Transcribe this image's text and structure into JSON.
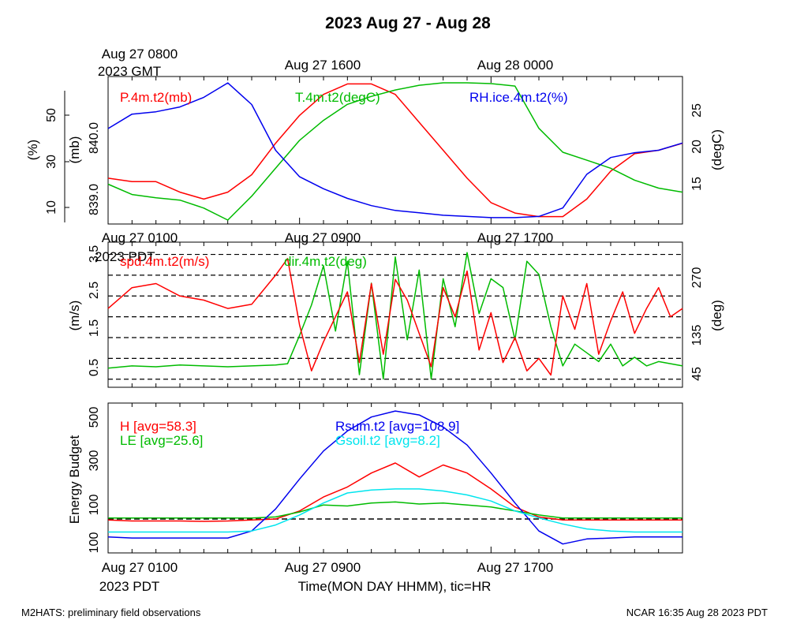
{
  "title": "2023 Aug 27 - Aug 28",
  "top_time_labels": {
    "gmt_first": "Aug 27 0800",
    "gmt_year": "2023 GMT",
    "gmt_mid": "Aug 27 1600",
    "gmt_last": "Aug 28 0000",
    "pdt_first": "Aug 27 0100",
    "pdt_year": "2023 PDT",
    "pdt_mid": "Aug 27 0900",
    "pdt_last": "Aug 27 1700"
  },
  "bottom_axis": {
    "first": "Aug 27 0100",
    "year": "2023 PDT",
    "mid": "Aug 27 0900",
    "last": "Aug 27 1700",
    "xlabel": "Time(MON DAY HHMM), tic=HR"
  },
  "footer": {
    "left": "M2HATS: preliminary field observations",
    "right": "NCAR 16:35 Aug 28 2023 PDT"
  },
  "colors": {
    "red": "#ff0000",
    "green": "#00bb00",
    "blue": "#0000ee",
    "cyan": "#00e5ee",
    "black": "#000000"
  },
  "chart_data": [
    {
      "type": "line",
      "panel": "top",
      "x_hours_pdt": [
        0,
        24
      ],
      "axes": {
        "left_outer": {
          "label": "(%)",
          "ticks": [
            "10",
            "30",
            "50"
          ]
        },
        "left_inner": {
          "label": "(mb)",
          "ticks": [
            "839.0",
            "840.0"
          ]
        },
        "right": {
          "label": "(degC)",
          "ticks": [
            "15",
            "20",
            "25"
          ]
        }
      },
      "series": [
        {
          "name": "P.4m.t2(mb)",
          "color": "red",
          "unit": "mb",
          "x": [
            0,
            1,
            2,
            3,
            4,
            5,
            6,
            7,
            8,
            9,
            10,
            11,
            12,
            13,
            14,
            15,
            16,
            17,
            18,
            19,
            20,
            21,
            22,
            23,
            24
          ],
          "values": [
            839.5,
            839.45,
            839.45,
            839.3,
            839.2,
            839.3,
            839.55,
            840.0,
            840.4,
            840.7,
            840.85,
            840.85,
            840.7,
            840.3,
            839.9,
            839.5,
            839.15,
            839.0,
            838.95,
            838.95,
            839.2,
            839.6,
            839.85,
            839.9,
            840.0
          ]
        },
        {
          "name": "T.4m.t2(degC)",
          "color": "green",
          "unit": "degC",
          "x": [
            0,
            1,
            2,
            3,
            4,
            5,
            6,
            7,
            8,
            9,
            10,
            11,
            12,
            13,
            14,
            15,
            16,
            17,
            18,
            19,
            20,
            21,
            22,
            23,
            24
          ],
          "values": [
            16.0,
            14.7,
            14.3,
            14.0,
            13.0,
            11.5,
            14.5,
            18.0,
            21.5,
            24.0,
            26.0,
            27.0,
            27.8,
            28.4,
            28.7,
            28.7,
            28.6,
            28.3,
            23.0,
            20.0,
            19.0,
            18.0,
            16.5,
            15.5,
            15.0
          ]
        },
        {
          "name": "RH.ice.4m.t2(%)",
          "color": "blue",
          "unit": "%",
          "x": [
            0,
            1,
            2,
            3,
            4,
            5,
            6,
            7,
            8,
            9,
            10,
            11,
            12,
            13,
            14,
            15,
            16,
            17,
            18,
            19,
            20,
            21,
            22,
            23,
            24
          ],
          "values": [
            47.0,
            53.0,
            54.0,
            56.0,
            60.0,
            66.0,
            57.0,
            38.0,
            27.0,
            22.0,
            18.0,
            15.0,
            13.0,
            12.0,
            11.0,
            10.5,
            10.0,
            10.0,
            10.5,
            14.0,
            28.0,
            35.0,
            37.0,
            38.0,
            41.0
          ]
        }
      ]
    },
    {
      "type": "line",
      "panel": "middle",
      "x_hours_pdt": [
        0,
        24
      ],
      "axes": {
        "left": {
          "label": "(m/s)",
          "ticks": [
            "0.5",
            "1.5",
            "2.5",
            "3.5"
          ],
          "ylim": [
            0.2,
            3.5
          ]
        },
        "right": {
          "label": "(deg)",
          "ticks": [
            "45",
            "135",
            "270"
          ]
        }
      },
      "reference_lines_ms": [
        0.3,
        0.8,
        1.3,
        1.8,
        2.3,
        2.8,
        3.3
      ],
      "series": [
        {
          "name": "spd.4m.t2(m/s)",
          "color": "red",
          "unit": "m/s",
          "x": [
            0,
            1,
            2,
            3,
            4,
            5,
            6,
            7,
            7.5,
            8,
            8.5,
            9,
            9.5,
            10,
            10.5,
            11,
            11.5,
            12,
            12.5,
            13,
            13.5,
            14,
            14.5,
            15,
            15.5,
            16,
            16.5,
            17,
            17.5,
            18,
            18.5,
            19,
            19.5,
            20,
            20.5,
            21,
            21.5,
            22,
            22.5,
            23,
            23.5,
            24
          ],
          "values": [
            2.0,
            2.5,
            2.6,
            2.3,
            2.2,
            2.0,
            2.1,
            2.8,
            3.2,
            1.6,
            0.5,
            1.2,
            1.8,
            2.4,
            0.7,
            2.6,
            0.9,
            2.7,
            2.2,
            1.4,
            0.6,
            2.5,
            1.8,
            2.9,
            1.0,
            1.9,
            0.7,
            1.3,
            0.5,
            0.8,
            0.4,
            2.3,
            1.5,
            2.6,
            0.9,
            1.7,
            2.4,
            1.4,
            2.0,
            2.5,
            1.8,
            2.0
          ]
        },
        {
          "name": "dir.4m.t2(deg)",
          "color": "green",
          "unit": "deg",
          "x": [
            0,
            1,
            2,
            3,
            4,
            5,
            6,
            7,
            7.5,
            8,
            8.5,
            9,
            9.5,
            10,
            10.5,
            11,
            11.5,
            12,
            12.5,
            13,
            13.5,
            14,
            14.5,
            15,
            15.5,
            16,
            16.5,
            17,
            17.5,
            18,
            18.5,
            19,
            19.5,
            20,
            20.5,
            21,
            21.5,
            22,
            22.5,
            23,
            23.5,
            24
          ],
          "values": [
            55,
            60,
            58,
            62,
            60,
            58,
            60,
            62,
            65,
            130,
            200,
            290,
            140,
            300,
            40,
            250,
            30,
            310,
            120,
            280,
            30,
            260,
            150,
            320,
            180,
            260,
            240,
            120,
            300,
            270,
            150,
            60,
            110,
            90,
            70,
            110,
            60,
            80,
            60,
            70,
            65,
            60
          ]
        }
      ]
    },
    {
      "type": "line",
      "panel": "bottom",
      "x_hours_pdt": [
        0,
        24
      ],
      "ylabel": "Energy Budget",
      "yticks": [
        "100",
        "100",
        "300",
        "500"
      ],
      "ylim": [
        -150,
        560
      ],
      "zero_line": 0,
      "series": [
        {
          "name": "H",
          "avg_label": "[avg=58.3]",
          "color": "red",
          "x": [
            0,
            1,
            2,
            3,
            4,
            5,
            6,
            7,
            8,
            9,
            10,
            11,
            12,
            13,
            14,
            15,
            16,
            17,
            18,
            19,
            20,
            21,
            22,
            23,
            24
          ],
          "values": [
            -5,
            -10,
            -10,
            -10,
            -12,
            -10,
            -5,
            0,
            40,
            110,
            160,
            230,
            280,
            210,
            270,
            230,
            150,
            60,
            10,
            -5,
            -5,
            -5,
            -5,
            -5,
            -5
          ]
        },
        {
          "name": "LE",
          "avg_label": "[avg=25.6]",
          "color": "green",
          "x": [
            0,
            1,
            2,
            3,
            4,
            5,
            6,
            7,
            8,
            9,
            10,
            11,
            12,
            13,
            14,
            15,
            16,
            17,
            18,
            19,
            20,
            21,
            22,
            23,
            24
          ],
          "values": [
            5,
            5,
            5,
            5,
            5,
            5,
            5,
            10,
            35,
            70,
            65,
            80,
            85,
            75,
            80,
            70,
            60,
            40,
            20,
            5,
            5,
            5,
            5,
            5,
            5
          ]
        },
        {
          "name": "Rsum.t2",
          "avg_label": "[avg=108.9]",
          "color": "blue",
          "x": [
            0,
            1,
            2,
            3,
            4,
            5,
            6,
            7,
            8,
            9,
            10,
            11,
            12,
            13,
            14,
            15,
            16,
            17,
            18,
            19,
            20,
            21,
            22,
            23,
            24
          ],
          "values": [
            -90,
            -95,
            -95,
            -95,
            -95,
            -95,
            -60,
            50,
            200,
            340,
            440,
            510,
            540,
            520,
            460,
            370,
            230,
            80,
            -60,
            -125,
            -100,
            -95,
            -90,
            -90,
            -90
          ]
        },
        {
          "name": "Gsoil.t2",
          "avg_label": "[avg=8.2]",
          "color": "cyan",
          "x": [
            0,
            1,
            2,
            3,
            4,
            5,
            6,
            7,
            8,
            9,
            10,
            11,
            12,
            13,
            14,
            15,
            16,
            17,
            18,
            19,
            20,
            21,
            22,
            23,
            24
          ],
          "values": [
            -65,
            -65,
            -65,
            -65,
            -65,
            -65,
            -60,
            -30,
            20,
            80,
            130,
            145,
            150,
            150,
            140,
            120,
            90,
            40,
            5,
            -25,
            -50,
            -60,
            -65,
            -65,
            -65
          ]
        }
      ]
    }
  ]
}
